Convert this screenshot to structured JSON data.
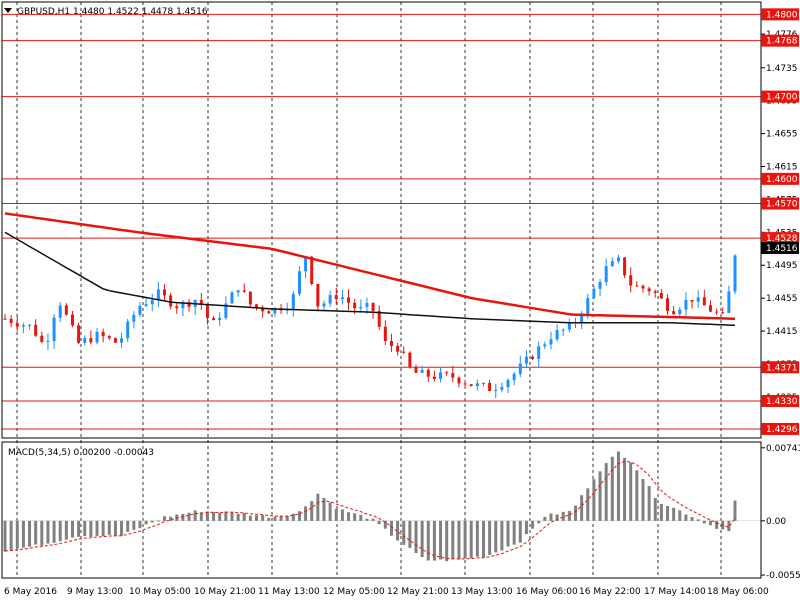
{
  "chart_data": {
    "type": "candlestick",
    "symbol_info": "GBPUSD,H1  1.4480 1.4522 1.4478 1.4516",
    "price_axis": {
      "ylim": [
        1.4285,
        1.4815
      ],
      "ticks": [
        "1.4776",
        "1.4735",
        "1.4695",
        "1.4655",
        "1.4615",
        "1.4575",
        "1.4535",
        "1.4495",
        "1.4455",
        "1.4415",
        "1.4375",
        "1.4335",
        "1.4295"
      ],
      "current_price": "1.4516"
    },
    "levels": [
      {
        "label": "1.4800",
        "value": 1.48
      },
      {
        "label": "1.4768",
        "value": 1.4768
      },
      {
        "label": "1.4700",
        "value": 1.47
      },
      {
        "label": "1.4600",
        "value": 1.46
      },
      {
        "label": "1.4570",
        "value": 1.457
      },
      {
        "label": "1.4528",
        "value": 1.4528
      },
      {
        "label": "1.4371",
        "value": 1.4371
      },
      {
        "label": "1.4330",
        "value": 1.433
      },
      {
        "label": "1.4296",
        "value": 1.4296
      }
    ],
    "time_axis": [
      "6 May 2016",
      "9 May 13:00",
      "10 May 05:00",
      "10 May 21:00",
      "11 May 13:00",
      "12 May 05:00",
      "12 May 21:00",
      "13 May 13:00",
      "16 May 06:00",
      "16 May 22:00",
      "17 May 14:00",
      "18 May 06:00"
    ],
    "bar_count": 120,
    "price_path": [
      [
        0,
        1.443
      ],
      [
        8,
        1.442
      ],
      [
        12,
        1.4395
      ],
      [
        16,
        1.4455
      ],
      [
        22,
        1.44
      ],
      [
        28,
        1.441
      ],
      [
        34,
        1.44
      ],
      [
        40,
        1.4445
      ],
      [
        46,
        1.446
      ],
      [
        52,
        1.4445
      ],
      [
        58,
        1.4455
      ],
      [
        62,
        1.442
      ],
      [
        66,
        1.4445
      ],
      [
        70,
        1.447
      ],
      [
        74,
        1.4445
      ],
      [
        80,
        1.444
      ],
      [
        86,
        1.445
      ],
      [
        90,
        1.451
      ],
      [
        94,
        1.4445
      ],
      [
        100,
        1.446
      ],
      [
        106,
        1.444
      ],
      [
        110,
        1.4445
      ],
      [
        114,
        1.44
      ],
      [
        118,
        1.4395
      ],
      [
        122,
        1.4365
      ],
      [
        128,
        1.436
      ],
      [
        134,
        1.436
      ],
      [
        140,
        1.435
      ],
      [
        146,
        1.4345
      ],
      [
        152,
        1.436
      ],
      [
        158,
        1.4385
      ],
      [
        164,
        1.441
      ],
      [
        170,
        1.442
      ],
      [
        176,
        1.446
      ],
      [
        180,
        1.449
      ],
      [
        184,
        1.45
      ],
      [
        188,
        1.447
      ],
      [
        194,
        1.4465
      ],
      [
        200,
        1.444
      ],
      [
        206,
        1.4455
      ],
      [
        212,
        1.444
      ],
      [
        216,
        1.443
      ],
      [
        219,
        1.451
      ]
    ],
    "moving_averages": [
      {
        "color": "#e8150f",
        "values": [
          [
            0,
            1.4558
          ],
          [
            40,
            1.4535
          ],
          [
            80,
            1.4515
          ],
          [
            110,
            1.4485
          ],
          [
            140,
            1.4455
          ],
          [
            170,
            1.4435
          ],
          [
            200,
            1.4432
          ],
          [
            219,
            1.443
          ]
        ]
      },
      {
        "color": "#111111",
        "values": [
          [
            0,
            1.4535
          ],
          [
            15,
            1.45
          ],
          [
            30,
            1.4465
          ],
          [
            50,
            1.445
          ],
          [
            80,
            1.4442
          ],
          [
            110,
            1.4438
          ],
          [
            140,
            1.443
          ],
          [
            170,
            1.4425
          ],
          [
            200,
            1.4425
          ],
          [
            219,
            1.4422
          ]
        ]
      }
    ],
    "macd": {
      "label": "MACD(5,34,5) 0.00200 -0.00043",
      "ylim": [
        -0.0058,
        0.008
      ],
      "ticks": [
        "0.00741",
        "0.00",
        "-0.0055"
      ],
      "hist_path": [
        [
          0,
          -0.003
        ],
        [
          10,
          -0.0025
        ],
        [
          22,
          -0.0015
        ],
        [
          35,
          -0.0015
        ],
        [
          48,
          0.0004
        ],
        [
          58,
          0.001
        ],
        [
          70,
          0.0008
        ],
        [
          80,
          0.0004
        ],
        [
          88,
          0.0008
        ],
        [
          94,
          0.0028
        ],
        [
          100,
          0.0012
        ],
        [
          110,
          0.0002
        ],
        [
          118,
          -0.002
        ],
        [
          126,
          -0.004
        ],
        [
          135,
          -0.004
        ],
        [
          145,
          -0.0035
        ],
        [
          155,
          -0.002
        ],
        [
          162,
          0.0005
        ],
        [
          170,
          0.001
        ],
        [
          178,
          0.005
        ],
        [
          184,
          0.007
        ],
        [
          188,
          0.006
        ],
        [
          196,
          0.002
        ],
        [
          204,
          0.0008
        ],
        [
          212,
          -0.0005
        ],
        [
          218,
          -0.0012
        ],
        [
          219,
          0.002
        ]
      ],
      "colors": {
        "histogram": "#808080",
        "signal": "#e8150f"
      }
    },
    "colors": {
      "bull": "#1e90ff",
      "bear": "#e8150f",
      "level": "#e8150f",
      "grid": "#000000",
      "label_bg": "#e8150f",
      "current_bg": "#000000"
    }
  }
}
